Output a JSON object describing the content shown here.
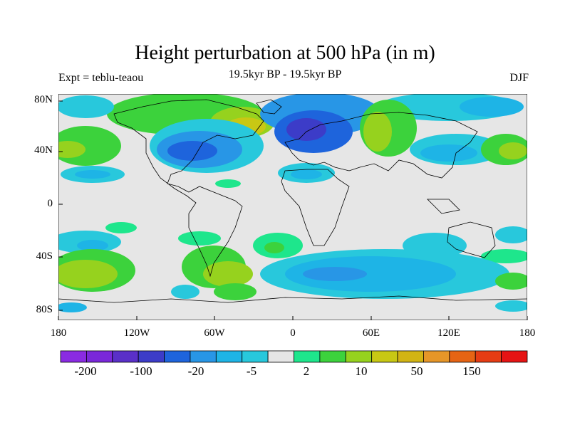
{
  "title": "Height perturbation at 500 hPa (in m)",
  "subtitle_left": "Expt = teblu-teaou",
  "subtitle_center": "19.5kyr BP - 19.5kyr BP",
  "subtitle_right": "DJF",
  "y_axis_labels": [
    "80N",
    "40N",
    "0",
    "40S",
    "80S"
  ],
  "x_axis_labels": [
    "180",
    "120W",
    "60W",
    "0",
    "60E",
    "120E",
    "180"
  ],
  "colorbar": {
    "colors": [
      "#8a2be2",
      "#7a28d9",
      "#5a30c8",
      "#3c3cc8",
      "#1e64dc",
      "#2896e6",
      "#1eb4e6",
      "#28c8dc",
      "#e6e6e6",
      "#1ee68c",
      "#3cd23c",
      "#96d21e",
      "#c8c814",
      "#d2b414",
      "#e69628",
      "#e66414",
      "#e63c14",
      "#e61414"
    ],
    "labels": [
      "-200",
      "-100",
      "-20",
      "-5",
      "2",
      "10",
      "50",
      "150"
    ]
  }
}
